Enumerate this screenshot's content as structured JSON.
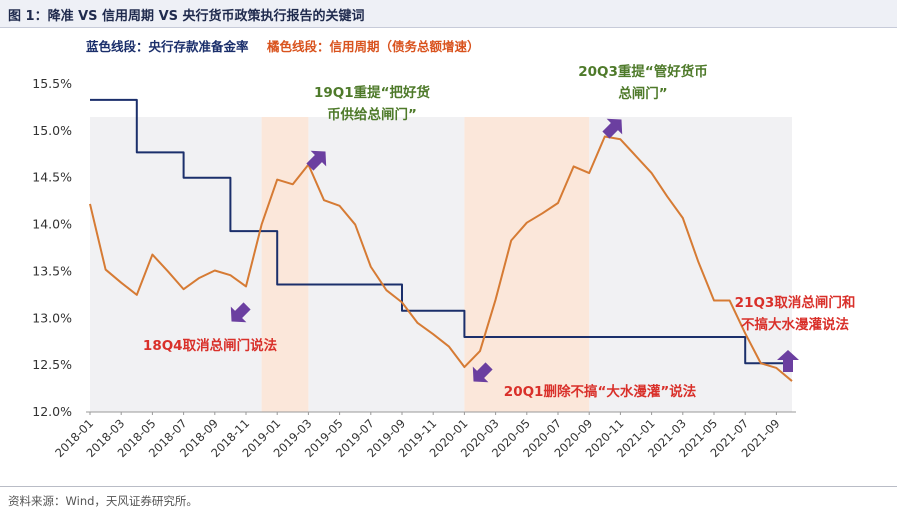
{
  "title": "图 1：降准 VS 信用周期 VS 央行货币政策执行报告的关键词",
  "legend": {
    "blue": "蓝色线段：央行存款准备金率",
    "orange": "橘色线段：信用周期（债务总额增速）"
  },
  "source": "资料来源：Wind，天风证券研究所。",
  "colors": {
    "blue": "#1b2f6b",
    "orange": "#d67b34",
    "shade": "#fbe7da",
    "shade_gray": "#f1f1f3",
    "arrow": "#6b3fa0",
    "annotation_green": "#4e7a2a",
    "annotation_red": "#d9302a"
  },
  "chart_data": {
    "type": "line",
    "x": [
      "2018-01",
      "2018-02",
      "2018-03",
      "2018-04",
      "2018-05",
      "2018-06",
      "2018-07",
      "2018-08",
      "2018-09",
      "2018-10",
      "2018-11",
      "2018-12",
      "2019-01",
      "2019-02",
      "2019-03",
      "2019-04",
      "2019-05",
      "2019-06",
      "2019-07",
      "2019-08",
      "2019-09",
      "2019-10",
      "2019-11",
      "2019-12",
      "2020-01",
      "2020-02",
      "2020-03",
      "2020-04",
      "2020-05",
      "2020-06",
      "2020-07",
      "2020-08",
      "2020-09",
      "2020-10",
      "2020-11",
      "2020-12",
      "2021-01",
      "2021-02",
      "2021-03",
      "2021-04",
      "2021-05",
      "2021-06",
      "2021-07",
      "2021-08",
      "2021-09",
      "2021-10"
    ],
    "x_tick_labels": [
      "2018-01",
      "2018-03",
      "2018-05",
      "2018-07",
      "2018-09",
      "2018-11",
      "2019-01",
      "2019-03",
      "2019-05",
      "2019-07",
      "2019-09",
      "2019-11",
      "2020-01",
      "2020-03",
      "2020-05",
      "2020-07",
      "2020-09",
      "2020-11",
      "2021-01",
      "2021-03",
      "2021-05",
      "2021-07",
      "2021-09"
    ],
    "y_ticks": [
      "15.5%",
      "15.0%",
      "14.5%",
      "14.0%",
      "13.5%",
      "13.0%",
      "12.5%",
      "12.0%"
    ],
    "ylim": [
      12.0,
      15.5
    ],
    "series": [
      {
        "color_key": "blue",
        "values": [
          15.33,
          15.33,
          15.33,
          14.77,
          14.77,
          14.77,
          14.5,
          14.5,
          14.5,
          13.93,
          13.93,
          13.93,
          13.36,
          13.36,
          13.36,
          13.36,
          13.36,
          13.36,
          13.36,
          13.36,
          13.08,
          13.08,
          13.08,
          13.08,
          12.8,
          12.8,
          12.8,
          12.8,
          12.8,
          12.8,
          12.8,
          12.8,
          12.8,
          12.8,
          12.8,
          12.8,
          12.8,
          12.8,
          12.8,
          12.8,
          12.8,
          12.8,
          12.52,
          12.52,
          12.52,
          12.52
        ]
      },
      {
        "color_key": "orange",
        "values": [
          14.22,
          13.52,
          13.38,
          13.25,
          13.68,
          13.5,
          13.31,
          13.43,
          13.51,
          13.46,
          13.34,
          14.0,
          14.48,
          14.43,
          14.64,
          14.26,
          14.2,
          14.0,
          13.55,
          13.3,
          13.17,
          12.95,
          12.83,
          12.7,
          12.48,
          12.65,
          13.2,
          13.83,
          14.02,
          14.12,
          14.23,
          14.62,
          14.55,
          14.94,
          14.91,
          14.73,
          14.55,
          14.3,
          14.07,
          13.6,
          13.19,
          13.19,
          12.84,
          12.52,
          12.47,
          12.33
        ]
      }
    ],
    "shaded_ranges": [
      {
        "from": "2018-12",
        "to": "2019-03",
        "tone": "shade"
      },
      {
        "from": "2020-01",
        "to": "2020-09",
        "tone": "shade"
      }
    ],
    "shaded_ranges_gray": [
      {
        "from": "2018-01",
        "to": "2018-12"
      },
      {
        "from": "2019-03",
        "to": "2020-01"
      },
      {
        "from": "2020-09",
        "to": "2021-10"
      }
    ],
    "annotations": [
      {
        "lines": [
          "19Q1重提“把好货",
          "币供给总闸门”"
        ],
        "color_key": "annotation_green",
        "anchor": "2019-04",
        "dir": "up"
      },
      {
        "lines": [
          "20Q3重提“管好货币",
          "总闸门”"
        ],
        "color_key": "annotation_green",
        "anchor": "2020-11",
        "dir": "up"
      },
      {
        "lines": [
          "18Q4取消总闸门说法"
        ],
        "color_key": "annotation_red",
        "anchor": "2018-11",
        "dir": "down"
      },
      {
        "lines": [
          "20Q1删除不搞“大水漫灌”说法"
        ],
        "color_key": "annotation_red",
        "anchor": "2020-01",
        "dir": "down"
      },
      {
        "lines": [
          "21Q3取消总闸门和",
          "不搞大水漫灌说法"
        ],
        "color_key": "annotation_red",
        "anchor": "2021-09",
        "dir": "up"
      }
    ]
  }
}
